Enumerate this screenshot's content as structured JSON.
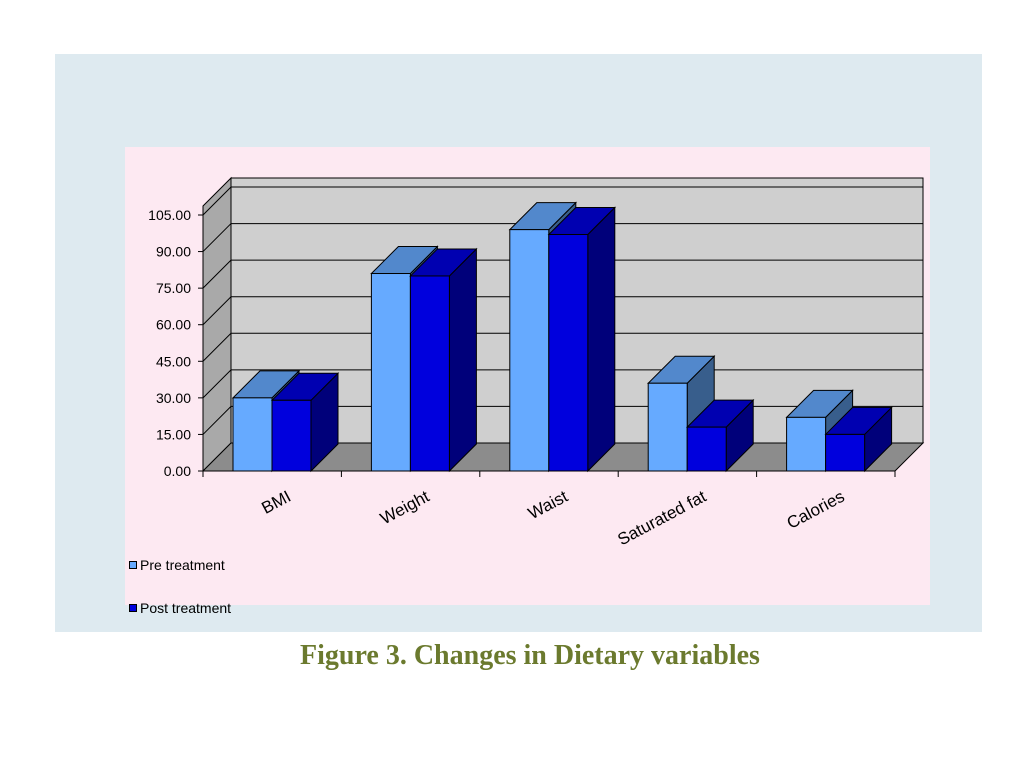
{
  "caption": "Figure 3. Changes in Dietary variables",
  "colors": {
    "outer_background": "#deeaf0",
    "plot_background": "#fde9f2",
    "wall": "#cfcfcf",
    "floor": "#8c8c8c",
    "caption": "#6b7a2e"
  },
  "chart_data": {
    "type": "bar",
    "title": "",
    "xlabel": "",
    "ylabel": "",
    "ylim": [
      0,
      105
    ],
    "grid": true,
    "legend_position": "bottom-left",
    "categories": [
      "BMI",
      "Weight",
      "Waist",
      "Saturated fat",
      "Calories"
    ],
    "yticks": [
      "0.00",
      "15.00",
      "30.00",
      "45.00",
      "60.00",
      "75.00",
      "90.00",
      "105.00"
    ],
    "series": [
      {
        "name": "Pre treatment",
        "color": "#66aaff",
        "values": [
          30,
          81,
          99,
          36,
          22
        ]
      },
      {
        "name": "Post treatment",
        "color": "#0000dd",
        "values": [
          29,
          80,
          97,
          18,
          15
        ]
      }
    ]
  }
}
